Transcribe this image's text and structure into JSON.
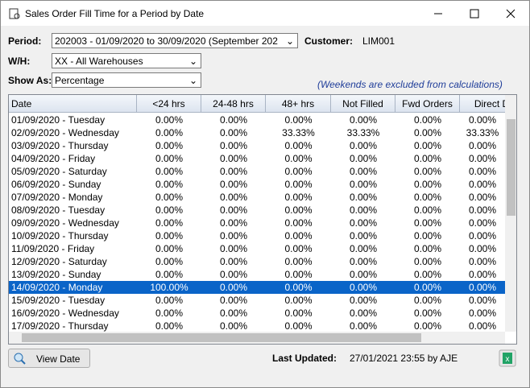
{
  "window": {
    "title": "Sales Order Fill Time for a Period by Date"
  },
  "form": {
    "period_label": "Period:",
    "period_value": "202003 - 01/09/2020 to 30/09/2020 (September 202",
    "customer_label": "Customer:",
    "customer_value": "LIM001",
    "wh_label": "W/H:",
    "wh_value": "XX - All Warehouses",
    "show_as_label": "Show As:",
    "show_as_value": "Percentage",
    "note": "(Weekends are excluded from calculations)"
  },
  "table": {
    "columns": [
      "Date",
      "<24 hrs",
      "24-48 hrs",
      "48+ hrs",
      "Not Filled",
      "Fwd Orders",
      "Direct D"
    ],
    "selected_row": 13,
    "rows": [
      [
        "01/09/2020 - Tuesday",
        "0.00%",
        "0.00%",
        "0.00%",
        "0.00%",
        "0.00%",
        "0.00%"
      ],
      [
        "02/09/2020 - Wednesday",
        "0.00%",
        "0.00%",
        "33.33%",
        "33.33%",
        "0.00%",
        "33.33%"
      ],
      [
        "03/09/2020 - Thursday",
        "0.00%",
        "0.00%",
        "0.00%",
        "0.00%",
        "0.00%",
        "0.00%"
      ],
      [
        "04/09/2020 - Friday",
        "0.00%",
        "0.00%",
        "0.00%",
        "0.00%",
        "0.00%",
        "0.00%"
      ],
      [
        "05/09/2020 - Saturday",
        "0.00%",
        "0.00%",
        "0.00%",
        "0.00%",
        "0.00%",
        "0.00%"
      ],
      [
        "06/09/2020 - Sunday",
        "0.00%",
        "0.00%",
        "0.00%",
        "0.00%",
        "0.00%",
        "0.00%"
      ],
      [
        "07/09/2020 - Monday",
        "0.00%",
        "0.00%",
        "0.00%",
        "0.00%",
        "0.00%",
        "0.00%"
      ],
      [
        "08/09/2020 - Tuesday",
        "0.00%",
        "0.00%",
        "0.00%",
        "0.00%",
        "0.00%",
        "0.00%"
      ],
      [
        "09/09/2020 - Wednesday",
        "0.00%",
        "0.00%",
        "0.00%",
        "0.00%",
        "0.00%",
        "0.00%"
      ],
      [
        "10/09/2020 - Thursday",
        "0.00%",
        "0.00%",
        "0.00%",
        "0.00%",
        "0.00%",
        "0.00%"
      ],
      [
        "11/09/2020 - Friday",
        "0.00%",
        "0.00%",
        "0.00%",
        "0.00%",
        "0.00%",
        "0.00%"
      ],
      [
        "12/09/2020 - Saturday",
        "0.00%",
        "0.00%",
        "0.00%",
        "0.00%",
        "0.00%",
        "0.00%"
      ],
      [
        "13/09/2020 - Sunday",
        "0.00%",
        "0.00%",
        "0.00%",
        "0.00%",
        "0.00%",
        "0.00%"
      ],
      [
        "14/09/2020 - Monday",
        "100.00%",
        "0.00%",
        "0.00%",
        "0.00%",
        "0.00%",
        "0.00%"
      ],
      [
        "15/09/2020 - Tuesday",
        "0.00%",
        "0.00%",
        "0.00%",
        "0.00%",
        "0.00%",
        "0.00%"
      ],
      [
        "16/09/2020 - Wednesday",
        "0.00%",
        "0.00%",
        "0.00%",
        "0.00%",
        "0.00%",
        "0.00%"
      ],
      [
        "17/09/2020 - Thursday",
        "0.00%",
        "0.00%",
        "0.00%",
        "0.00%",
        "0.00%",
        "0.00%"
      ]
    ]
  },
  "footer": {
    "button": "View Date",
    "last_updated_label": "Last Updated:",
    "last_updated_value": "27/01/2021 23:55 by AJE"
  }
}
